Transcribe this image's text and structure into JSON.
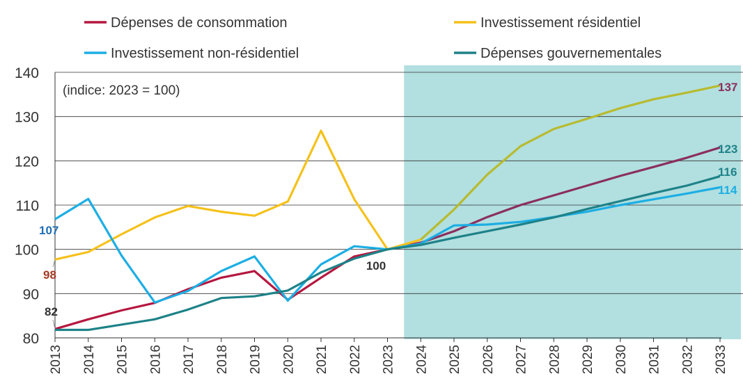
{
  "chart_data": {
    "type": "line",
    "note": "(indice: 2023 = 100)",
    "x": [
      2013,
      2014,
      2015,
      2016,
      2017,
      2018,
      2019,
      2020,
      2021,
      2022,
      2023,
      2024,
      2025,
      2026,
      2027,
      2028,
      2029,
      2030,
      2031,
      2032,
      2033
    ],
    "ylim": [
      80,
      140
    ],
    "yticks": [
      80,
      90,
      100,
      110,
      120,
      130,
      140
    ],
    "grid": true,
    "legend_position": "top",
    "forecast_shading": {
      "from": 2024,
      "to": 2033,
      "color": "#b2dfe0"
    },
    "series": [
      {
        "name": "Dépenses de consommation",
        "color": "#b5173f",
        "forecast_color": "#8b2e5e",
        "values": [
          82,
          84.2,
          86.2,
          87.9,
          91,
          93.6,
          95.1,
          88.6,
          93.6,
          98.4,
          100,
          101.5,
          104.1,
          107.3,
          110,
          112.2,
          114.4,
          116.6,
          118.6,
          120.7,
          123
        ]
      },
      {
        "name": "Investissement résidentiel",
        "color": "#f5c11a",
        "forecast_color": "#b7bb2e",
        "values": [
          97.7,
          99.4,
          103.4,
          107.2,
          109.8,
          108.5,
          107.6,
          110.8,
          126.8,
          111.3,
          100,
          102.2,
          109,
          116.9,
          123.3,
          127.2,
          129.5,
          131.9,
          133.9,
          135.4,
          137
        ]
      },
      {
        "name": "Investissement non-résidentiel",
        "color": "#1caee4",
        "forecast_color": "#1caee4",
        "values": [
          106.8,
          111.4,
          98.6,
          88,
          90.6,
          95.1,
          98.4,
          88.4,
          96.6,
          100.7,
          100,
          101.3,
          105.4,
          105.6,
          106.2,
          107.3,
          108.5,
          110,
          111.3,
          112.6,
          114
        ]
      },
      {
        "name": "Dépenses gouvernementales",
        "color": "#1d8288",
        "forecast_color": "#1d8288",
        "values": [
          81.8,
          81.8,
          83,
          84.2,
          86.4,
          89,
          89.4,
          90.7,
          94.8,
          97.9,
          100,
          101,
          102.6,
          104.1,
          105.6,
          107.2,
          109.1,
          110.9,
          112.7,
          114.4,
          116.5
        ]
      }
    ],
    "data_labels": [
      {
        "text": "107",
        "x": 2013,
        "y": 106.8,
        "color": "#1f6eb4"
      },
      {
        "text": "98",
        "x": 2013,
        "y": 97.7,
        "color": "#a33a22"
      },
      {
        "text": "82",
        "x": 2013,
        "y": 82,
        "color": "#333333"
      },
      {
        "text": "100",
        "x": 2023,
        "y": 100,
        "color": "#333333"
      },
      {
        "text": "137",
        "x": 2033,
        "y": 137,
        "color": "#8b2e5e"
      },
      {
        "text": "123",
        "x": 2033,
        "y": 123,
        "color": "#1d8288"
      },
      {
        "text": "116",
        "x": 2033,
        "y": 116.5,
        "color": "#1d8288"
      },
      {
        "text": "114",
        "x": 2033,
        "y": 114,
        "color": "#1caee4"
      }
    ]
  }
}
